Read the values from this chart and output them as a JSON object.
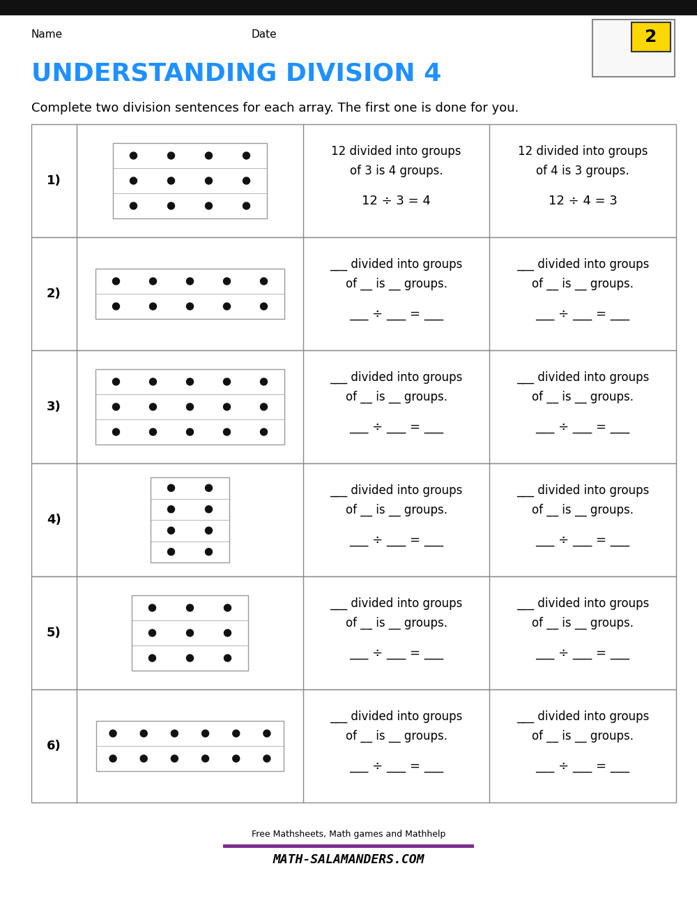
{
  "title": "UNDERSTANDING DIVISION 4",
  "title_color": "#1E90FF",
  "instruction": "Complete two division sentences for each array. The first one is done for you.",
  "name_label": "Name",
  "date_label": "Date",
  "bg_color": "#FFFFFF",
  "table_border": "#888888",
  "grid_color": "#999999",
  "dot_color": "#111111",
  "rows": [
    {
      "number": "1)",
      "dot_rows": 3,
      "dot_cols": 4,
      "col2_line1": "12 divided into groups",
      "col2_line2": "of 3 is 4 groups.",
      "col2_eq": "12 ÷ 3 = 4",
      "col3_line1": "12 divided into groups",
      "col3_line2": "of 4 is 3 groups.",
      "col3_eq": "12 ÷ 4 = 3",
      "blank": false
    },
    {
      "number": "2)",
      "dot_rows": 2,
      "dot_cols": 5,
      "col2_line1": "___ divided into groups",
      "col2_line2": "of __ is __ groups.",
      "col2_eq": "___ ÷ ___ = ___",
      "col3_line1": "___ divided into groups",
      "col3_line2": "of __ is __ groups.",
      "col3_eq": "___ ÷ ___ = ___",
      "blank": true
    },
    {
      "number": "3)",
      "dot_rows": 3,
      "dot_cols": 5,
      "col2_line1": "___ divided into groups",
      "col2_line2": "of __ is __ groups.",
      "col2_eq": "___ ÷ ___ = ___",
      "col3_line1": "___ divided into groups",
      "col3_line2": "of __ is __ groups.",
      "col3_eq": "___ ÷ ___ = ___",
      "blank": true
    },
    {
      "number": "4)",
      "dot_rows": 4,
      "dot_cols": 2,
      "col2_line1": "___ divided into groups",
      "col2_line2": "of __ is __ groups.",
      "col2_eq": "___ ÷ ___ = ___",
      "col3_line1": "___ divided into groups",
      "col3_line2": "of __ is __ groups.",
      "col3_eq": "___ ÷ ___ = ___",
      "blank": true
    },
    {
      "number": "5)",
      "dot_rows": 3,
      "dot_cols": 3,
      "col2_line1": "___ divided into groups",
      "col2_line2": "of __ is __ groups.",
      "col2_eq": "___ ÷ ___ = ___",
      "col3_line1": "___ divided into groups",
      "col3_line2": "of __ is __ groups.",
      "col3_eq": "___ ÷ ___ = ___",
      "blank": true
    },
    {
      "number": "6)",
      "dot_rows": 2,
      "dot_cols": 6,
      "col2_line1": "___ divided into groups",
      "col2_line2": "of __ is __ groups.",
      "col2_eq": "___ ÷ ___ = ___",
      "col3_line1": "___ divided into groups",
      "col3_line2": "of __ is __ groups.",
      "col3_eq": "___ ÷ ___ = ___",
      "blank": true
    }
  ],
  "footer_text": "Free Mathsheets, Math games and Mathhelp",
  "footer_site": "MATH-SALAMANDERS.COM",
  "footer_purple": "#7B2D8B",
  "top_bar_color": "#111111"
}
